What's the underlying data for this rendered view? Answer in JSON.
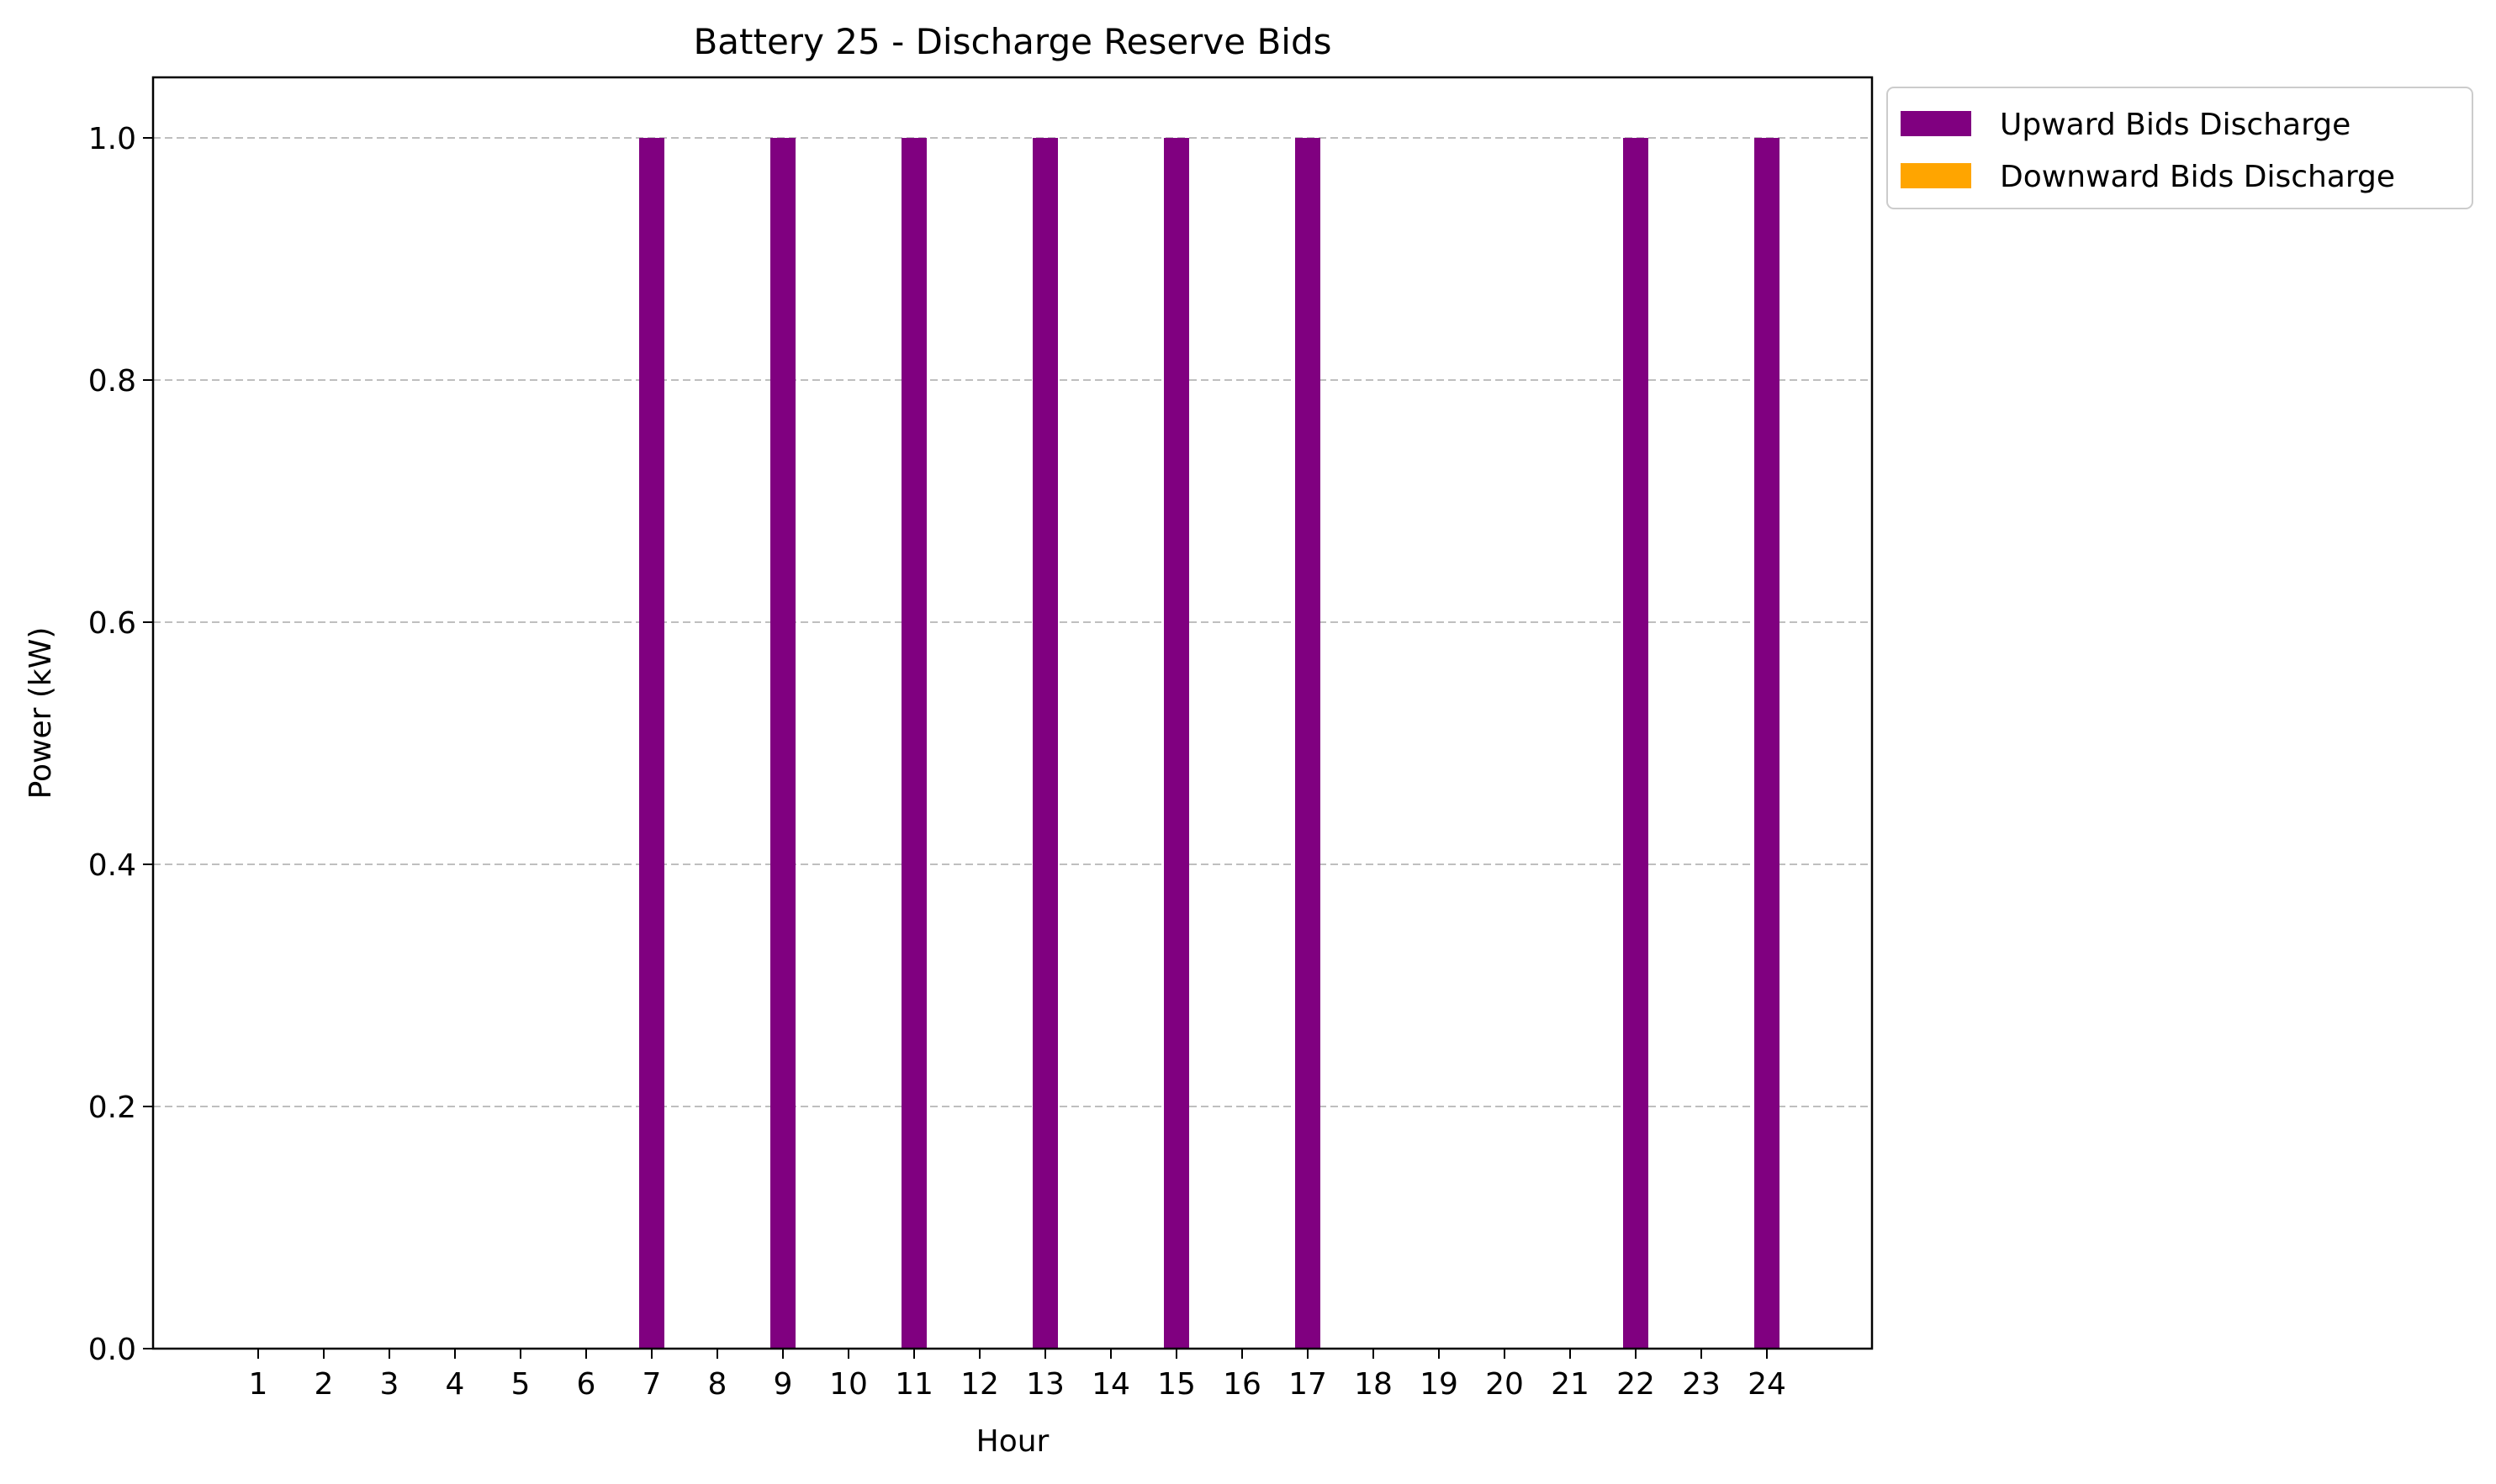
{
  "chart_data": {
    "type": "bar",
    "title": "Battery 25 - Discharge Reserve Bids",
    "xlabel": "Hour",
    "ylabel": "Power (kW)",
    "categories": [
      "1",
      "2",
      "3",
      "4",
      "5",
      "6",
      "7",
      "8",
      "9",
      "10",
      "11",
      "12",
      "13",
      "14",
      "15",
      "16",
      "17",
      "18",
      "19",
      "20",
      "21",
      "22",
      "23",
      "24"
    ],
    "ylim": [
      0,
      1.05
    ],
    "yticks": [
      "0.0",
      "0.2",
      "0.4",
      "0.6",
      "0.8",
      "1.0"
    ],
    "ytick_values": [
      0,
      0.2,
      0.4,
      0.6,
      0.8,
      1.0
    ],
    "grid": "horizontal-dashed",
    "legend_position": "outside-top-right",
    "series": [
      {
        "name": "Upward Bids Discharge",
        "color": "#800080",
        "values": [
          0,
          0,
          0,
          0,
          0,
          0,
          1,
          0,
          1,
          0,
          1,
          0,
          1,
          0,
          1,
          0,
          1,
          0,
          0,
          0,
          0,
          1,
          0,
          1
        ]
      },
      {
        "name": "Downward Bids Discharge",
        "color": "#ffa500",
        "values": [
          0,
          0,
          0,
          0,
          0,
          0,
          0,
          0,
          0,
          0,
          0,
          0,
          0,
          0,
          0,
          0,
          0,
          0,
          0,
          0,
          0,
          0,
          0,
          0
        ]
      }
    ]
  }
}
